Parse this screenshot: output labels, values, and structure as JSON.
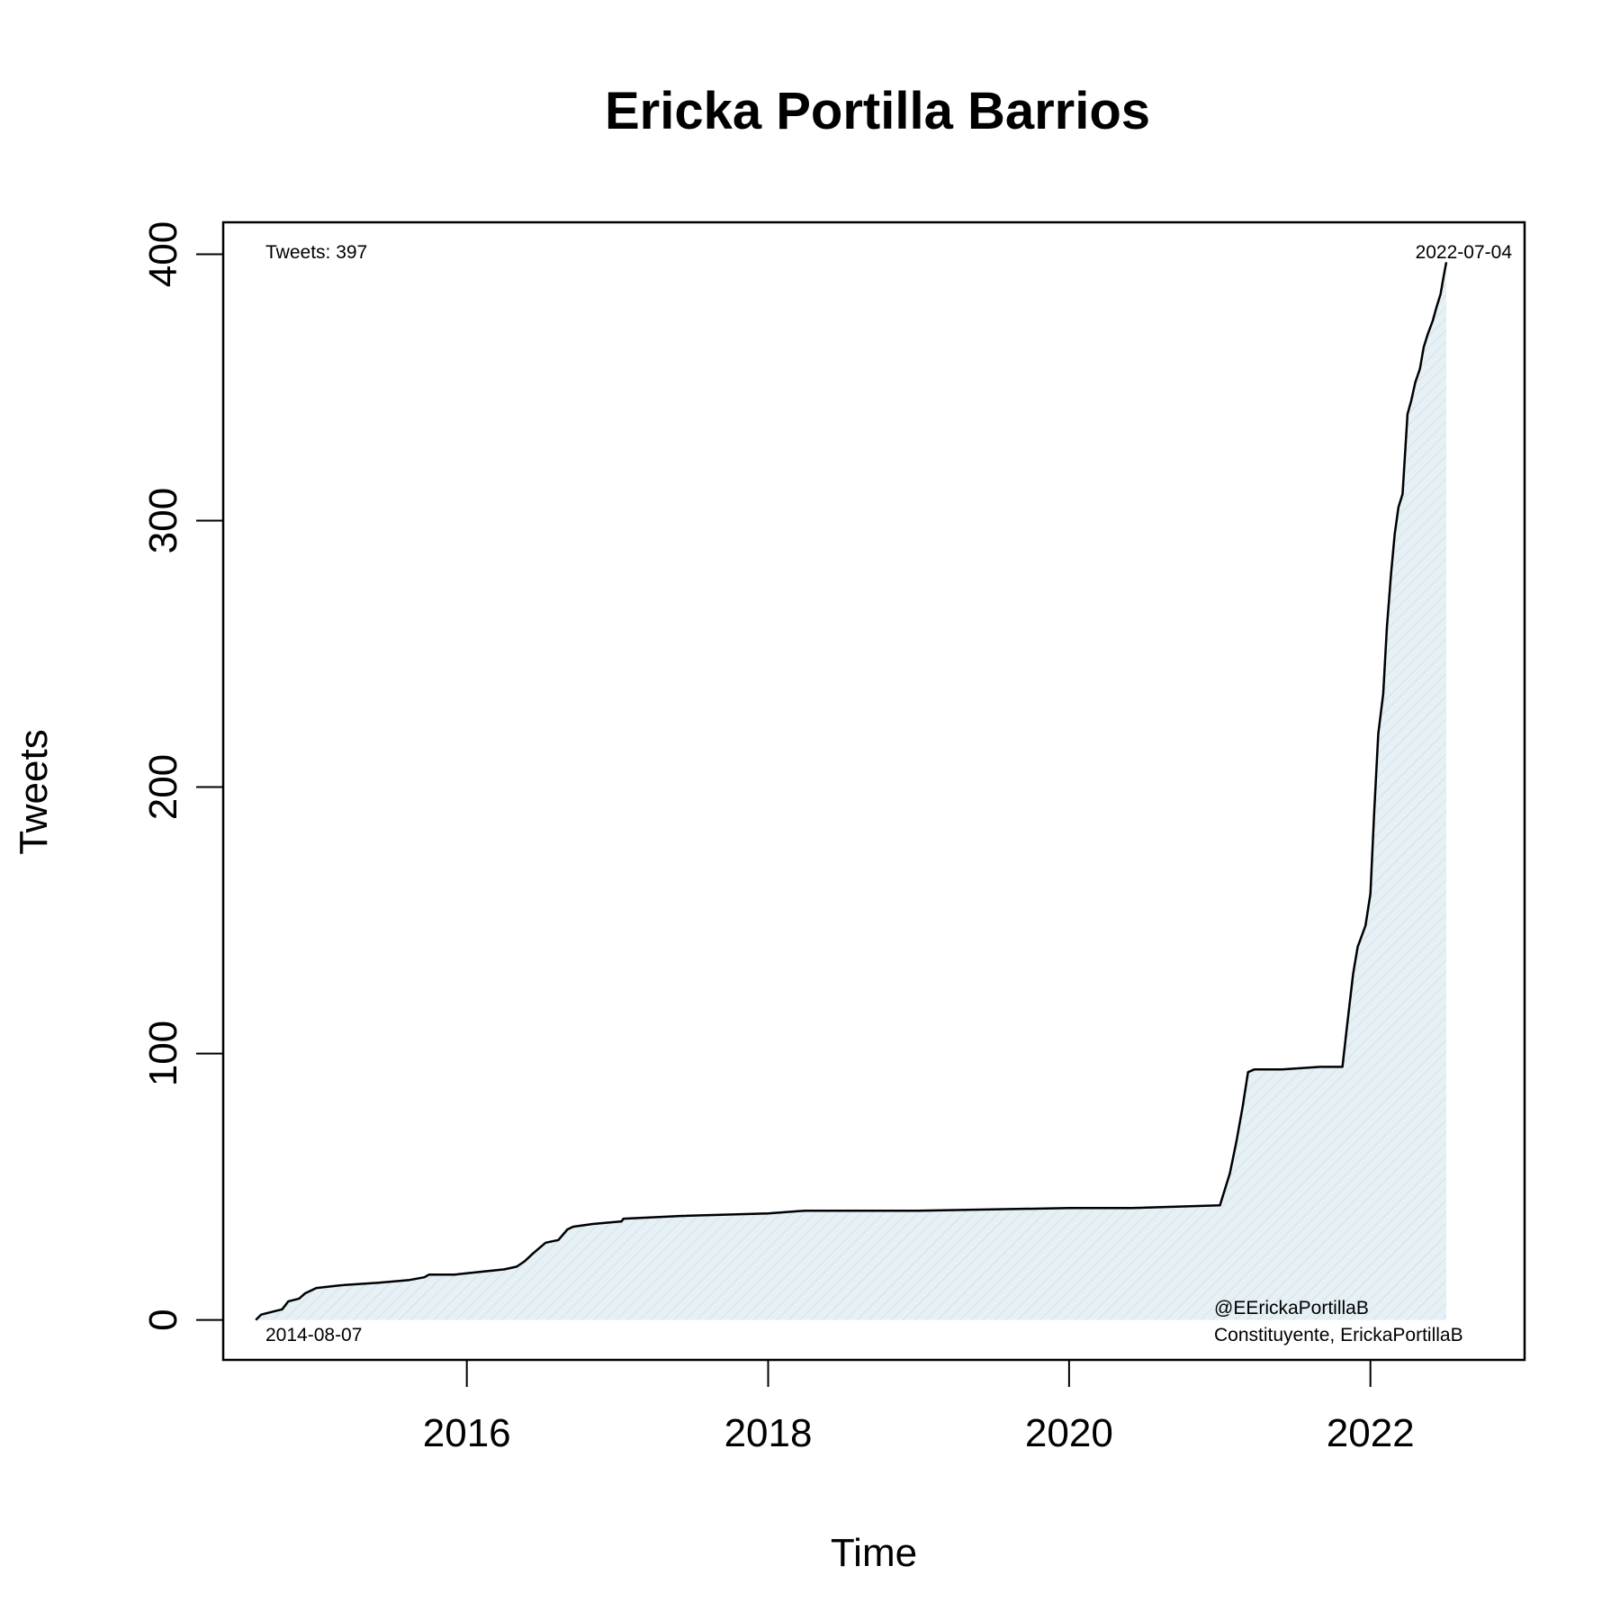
{
  "chart_data": {
    "type": "area",
    "title": "Ericka Portilla Barrios",
    "xlabel": "Time",
    "ylabel": "Tweets",
    "x_ticks": [
      "2016",
      "2018",
      "2020",
      "2022"
    ],
    "y_ticks": [
      0,
      100,
      200,
      300,
      400
    ],
    "xlim": [
      "2014-05-20",
      "2023-01-10"
    ],
    "ylim": [
      -15,
      412
    ],
    "fill_color": "#e6f0f5",
    "line_color": "#000000",
    "grid": false,
    "annotations": {
      "total": "Tweets: 397",
      "start_date": "2014-08-07",
      "end_date": "2022-07-04",
      "handle": "@EErickaPortillaB",
      "description": "Constituyente, ErickaPortillaB"
    },
    "series": [
      {
        "x": [
          "2014-08-07",
          "2014-08-20",
          "2014-09-15",
          "2014-10-10",
          "2014-10-25",
          "2014-11-20",
          "2014-12-05",
          "2015-01-01",
          "2015-03-01",
          "2015-06-01",
          "2015-08-15",
          "2015-09-20",
          "2015-10-01",
          "2015-12-01",
          "2016-02-01",
          "2016-04-01",
          "2016-05-01",
          "2016-05-20",
          "2016-06-10",
          "2016-06-25",
          "2016-07-10",
          "2016-08-10",
          "2016-09-01",
          "2016-09-15",
          "2016-11-01",
          "2017-01-10",
          "2017-01-15",
          "2017-06-01",
          "2018-01-01",
          "2018-04-01",
          "2019-01-01",
          "2020-01-01",
          "2020-06-01",
          "2021-01-01",
          "2021-01-25",
          "2021-02-10",
          "2021-02-25",
          "2021-03-10",
          "2021-03-25",
          "2021-06-01",
          "2021-09-01",
          "2021-10-25",
          "2021-11-05",
          "2021-11-20",
          "2021-12-01",
          "2021-12-20",
          "2022-01-01",
          "2022-01-10",
          "2022-01-20",
          "2022-02-01",
          "2022-02-10",
          "2022-02-20",
          "2022-03-01",
          "2022-03-10",
          "2022-03-20",
          "2022-04-01",
          "2022-04-10",
          "2022-04-20",
          "2022-05-01",
          "2022-05-10",
          "2022-05-20",
          "2022-06-01",
          "2022-06-10",
          "2022-06-20",
          "2022-06-28",
          "2022-07-04"
        ],
        "y": [
          0,
          2,
          3,
          4,
          7,
          8,
          10,
          12,
          13,
          14,
          15,
          16,
          17,
          17,
          18,
          19,
          20,
          22,
          25,
          27,
          29,
          30,
          34,
          35,
          36,
          37,
          38,
          39,
          40,
          41,
          41,
          42,
          42,
          43,
          55,
          67,
          80,
          93,
          94,
          94,
          95,
          95,
          110,
          130,
          140,
          148,
          160,
          190,
          220,
          235,
          260,
          280,
          295,
          305,
          310,
          340,
          345,
          352,
          357,
          365,
          370,
          375,
          380,
          385,
          392,
          397
        ]
      }
    ]
  }
}
